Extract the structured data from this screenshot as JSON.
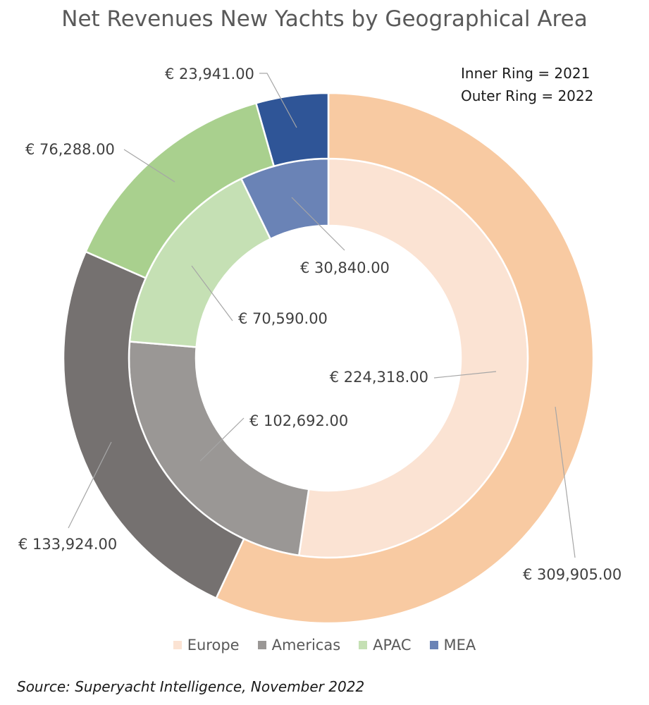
{
  "chart_data": {
    "type": "donut",
    "title": "Net Revenues New Yachts by Geographical Area",
    "note": [
      "Inner Ring = 2021",
      "Outer Ring = 2022"
    ],
    "categories": [
      "Europe",
      "Americas",
      "APAC",
      "MEA"
    ],
    "series": [
      {
        "name": "2021",
        "ring": "inner",
        "values": [
          224318.0,
          102692.0,
          70590.0,
          30840.0
        ],
        "labels": [
          "€ 224,318.00",
          "€ 102,692.00",
          "€ 70,590.00",
          "€ 30,840.00"
        ],
        "colors": [
          "#fbe3d3",
          "#9a9795",
          "#c5e0b4",
          "#6a83b6"
        ]
      },
      {
        "name": "2022",
        "ring": "outer",
        "values": [
          309905.0,
          133924.0,
          76288.0,
          23941.0
        ],
        "labels": [
          "€ 309,905.00",
          "€ 133,924.00",
          "€ 76,288.00",
          "€ 23,941.00"
        ],
        "colors": [
          "#f8caa2",
          "#757170",
          "#a9d08e",
          "#2f5597"
        ]
      }
    ],
    "legend": {
      "position": "bottom",
      "entries": [
        "Europe",
        "Americas",
        "APAC",
        "MEA"
      ],
      "colors": [
        "#fbe3d3",
        "#9a9795",
        "#c5e0b4",
        "#6a83b6"
      ]
    },
    "source": "Source: Superyacht Intelligence, November 2022"
  }
}
